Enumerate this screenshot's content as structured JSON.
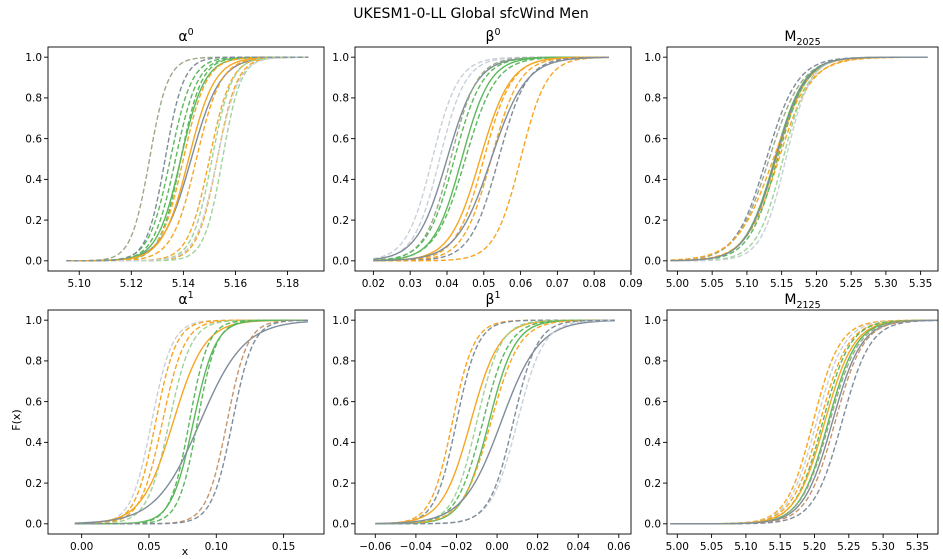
{
  "chart_data": {
    "type": "line",
    "title": "UKESM1-0-LL Global sfcWind Men",
    "xlabel": "x",
    "ylabel": "F(x)",
    "legend": "none",
    "grid": false,
    "palette": {
      "orange": "#f5a623",
      "green": "#5cb85c",
      "gray": "#7f8c9a",
      "light_gray": "#c8d0d8",
      "light_green": "#9ed39a",
      "olive": "#9aaa88"
    },
    "panels": [
      {
        "id": "alpha0",
        "title_base": "α",
        "title_sup": "0",
        "title_sub": "",
        "xlim": [
          5.088,
          5.194
        ],
        "ylim": [
          -0.05,
          1.05
        ],
        "xticks": [
          5.1,
          5.12,
          5.14,
          5.16,
          5.18
        ],
        "xtick_labels": [
          "5.10",
          "5.12",
          "5.14",
          "5.16",
          "5.18"
        ],
        "yticks": [
          0.0,
          0.2,
          0.4,
          0.6,
          0.8,
          1.0
        ],
        "ytick_labels": [
          "0.0",
          "0.2",
          "0.4",
          "0.6",
          "0.8",
          "1.0"
        ],
        "x_start": 5.095,
        "x_end": 5.188,
        "series": [
          {
            "color": "#7f8c9a",
            "dash": false,
            "mu": 5.143,
            "sigma": 0.0095
          },
          {
            "color": "#5cb85c",
            "dash": false,
            "mu": 5.139,
            "sigma": 0.0078
          },
          {
            "color": "#f5a623",
            "dash": false,
            "mu": 5.142,
            "sigma": 0.0085
          },
          {
            "color": "#9aaa88",
            "dash": true,
            "mu": 5.127,
            "sigma": 0.006
          },
          {
            "color": "#5cb85c",
            "dash": true,
            "mu": 5.135,
            "sigma": 0.007
          },
          {
            "color": "#5cb85c",
            "dash": true,
            "mu": 5.137,
            "sigma": 0.0072
          },
          {
            "color": "#5cb85c",
            "dash": true,
            "mu": 5.139,
            "sigma": 0.0068
          },
          {
            "color": "#f5a623",
            "dash": true,
            "mu": 5.14,
            "sigma": 0.0075
          },
          {
            "color": "#f5a623",
            "dash": true,
            "mu": 5.145,
            "sigma": 0.008
          },
          {
            "color": "#f5a623",
            "dash": true,
            "mu": 5.15,
            "sigma": 0.007
          },
          {
            "color": "#f5a623",
            "dash": true,
            "mu": 5.153,
            "sigma": 0.0065
          },
          {
            "color": "#9ed39a",
            "dash": true,
            "mu": 5.151,
            "sigma": 0.0065
          },
          {
            "color": "#9ed39a",
            "dash": true,
            "mu": 5.155,
            "sigma": 0.006
          },
          {
            "color": "#c8d0d8",
            "dash": true,
            "mu": 5.153,
            "sigma": 0.007
          },
          {
            "color": "#7f8c9a",
            "dash": true,
            "mu": 5.133,
            "sigma": 0.006
          }
        ]
      },
      {
        "id": "beta0",
        "title_base": "β",
        "title_sup": "0",
        "title_sub": "",
        "xlim": [
          0.015,
          0.09
        ],
        "ylim": [
          -0.05,
          1.05
        ],
        "xticks": [
          0.02,
          0.03,
          0.04,
          0.05,
          0.06,
          0.07,
          0.08,
          0.09
        ],
        "xtick_labels": [
          "0.02",
          "0.03",
          "0.04",
          "0.05",
          "0.06",
          "0.07",
          "0.08",
          "0.09"
        ],
        "yticks": [
          0.0,
          0.2,
          0.4,
          0.6,
          0.8,
          1.0
        ],
        "ytick_labels": [
          "0.0",
          "0.2",
          "0.4",
          "0.6",
          "0.8",
          "1.0"
        ],
        "x_start": 0.02,
        "x_end": 0.084,
        "series": [
          {
            "color": "#c8d0d8",
            "dash": true,
            "mu": 0.036,
            "sigma": 0.006
          },
          {
            "color": "#c8d0d8",
            "dash": true,
            "mu": 0.038,
            "sigma": 0.006
          },
          {
            "color": "#7f8c9a",
            "dash": false,
            "mu": 0.04,
            "sigma": 0.007
          },
          {
            "color": "#9aaa88",
            "dash": true,
            "mu": 0.041,
            "sigma": 0.006
          },
          {
            "color": "#5cb85c",
            "dash": true,
            "mu": 0.042,
            "sigma": 0.0065
          },
          {
            "color": "#5cb85c",
            "dash": false,
            "mu": 0.044,
            "sigma": 0.0065
          },
          {
            "color": "#5cb85c",
            "dash": true,
            "mu": 0.045,
            "sigma": 0.007
          },
          {
            "color": "#f5a623",
            "dash": false,
            "mu": 0.049,
            "sigma": 0.007
          },
          {
            "color": "#f5a623",
            "dash": true,
            "mu": 0.05,
            "sigma": 0.0065
          },
          {
            "color": "#f5a623",
            "dash": true,
            "mu": 0.052,
            "sigma": 0.0065
          },
          {
            "color": "#7f8c9a",
            "dash": true,
            "mu": 0.054,
            "sigma": 0.0065
          },
          {
            "color": "#f5a623",
            "dash": true,
            "mu": 0.06,
            "sigma": 0.006
          },
          {
            "color": "#7f8c9a",
            "dash": false,
            "mu": 0.052,
            "sigma": 0.008
          }
        ]
      },
      {
        "id": "m2025",
        "title_base": "M",
        "title_sup": "",
        "title_sub": "2025",
        "xlim": [
          4.985,
          5.375
        ],
        "ylim": [
          -0.05,
          1.05
        ],
        "xticks": [
          5.0,
          5.05,
          5.1,
          5.15,
          5.2,
          5.25,
          5.3,
          5.35
        ],
        "xtick_labels": [
          "5.00",
          "5.05",
          "5.10",
          "5.15",
          "5.20",
          "5.25",
          "5.30",
          "5.35"
        ],
        "yticks": [
          0.0,
          0.2,
          0.4,
          0.6,
          0.8,
          1.0
        ],
        "ytick_labels": [
          "0.0",
          "0.2",
          "0.4",
          "0.6",
          "0.8",
          "1.0"
        ],
        "x_start": 4.99,
        "x_end": 5.36,
        "series": [
          {
            "color": "#7f8c9a",
            "dash": true,
            "mu": 5.128,
            "sigma": 0.038
          },
          {
            "color": "#9aaa88",
            "dash": true,
            "mu": 5.132,
            "sigma": 0.04
          },
          {
            "color": "#5cb85c",
            "dash": false,
            "mu": 5.14,
            "sigma": 0.036
          },
          {
            "color": "#f5a623",
            "dash": false,
            "mu": 5.142,
            "sigma": 0.037
          },
          {
            "color": "#f5a623",
            "dash": true,
            "mu": 5.138,
            "sigma": 0.045
          },
          {
            "color": "#f5a623",
            "dash": true,
            "mu": 5.146,
            "sigma": 0.04
          },
          {
            "color": "#5cb85c",
            "dash": true,
            "mu": 5.144,
            "sigma": 0.035
          },
          {
            "color": "#9ed39a",
            "dash": true,
            "mu": 5.152,
            "sigma": 0.032
          },
          {
            "color": "#c8d0d8",
            "dash": true,
            "mu": 5.156,
            "sigma": 0.03
          },
          {
            "color": "#7f8c9a",
            "dash": false,
            "mu": 5.141,
            "sigma": 0.036
          }
        ]
      },
      {
        "id": "alpha1",
        "title_base": "α",
        "title_sup": "1",
        "title_sub": "",
        "xlim": [
          -0.025,
          0.18
        ],
        "ylim": [
          -0.05,
          1.05
        ],
        "xticks": [
          0.0,
          0.05,
          0.1,
          0.15
        ],
        "xtick_labels": [
          "0.00",
          "0.05",
          "0.10",
          "0.15"
        ],
        "yticks": [
          0.0,
          0.2,
          0.4,
          0.6,
          0.8,
          1.0
        ],
        "ytick_labels": [
          "0.0",
          "0.2",
          "0.4",
          "0.6",
          "0.8",
          "1.0"
        ],
        "x_start": -0.005,
        "x_end": 0.168,
        "series": [
          {
            "color": "#c8d0d8",
            "dash": true,
            "mu": 0.052,
            "sigma": 0.013
          },
          {
            "color": "#f5a623",
            "dash": true,
            "mu": 0.055,
            "sigma": 0.013
          },
          {
            "color": "#f5a623",
            "dash": true,
            "mu": 0.06,
            "sigma": 0.014
          },
          {
            "color": "#9ed39a",
            "dash": true,
            "mu": 0.065,
            "sigma": 0.014
          },
          {
            "color": "#f5a623",
            "dash": false,
            "mu": 0.068,
            "sigma": 0.02
          },
          {
            "color": "#5cb85c",
            "dash": true,
            "mu": 0.08,
            "sigma": 0.012
          },
          {
            "color": "#5cb85c",
            "dash": false,
            "mu": 0.083,
            "sigma": 0.014
          },
          {
            "color": "#7f8c9a",
            "dash": false,
            "mu": 0.088,
            "sigma": 0.028
          },
          {
            "color": "#5cb85c",
            "dash": true,
            "mu": 0.086,
            "sigma": 0.012
          },
          {
            "color": "#c8956a",
            "dash": true,
            "mu": 0.108,
            "sigma": 0.013
          },
          {
            "color": "#7f8c9a",
            "dash": true,
            "mu": 0.112,
            "sigma": 0.013
          }
        ]
      },
      {
        "id": "beta1",
        "title_base": "β",
        "title_sup": "1",
        "title_sub": "",
        "xlim": [
          -0.07,
          0.066
        ],
        "ylim": [
          -0.05,
          1.05
        ],
        "xticks": [
          -0.06,
          -0.04,
          -0.02,
          0.0,
          0.02,
          0.04,
          0.06
        ],
        "xtick_labels": [
          "−0.06",
          "−0.04",
          "−0.02",
          "0.00",
          "0.02",
          "0.04",
          "0.06"
        ],
        "yticks": [
          0.0,
          0.2,
          0.4,
          0.6,
          0.8,
          1.0
        ],
        "ytick_labels": [
          "0.0",
          "0.2",
          "0.4",
          "0.6",
          "0.8",
          "1.0"
        ],
        "x_start": -0.06,
        "x_end": 0.058,
        "series": [
          {
            "color": "#f5a623",
            "dash": true,
            "mu": -0.022,
            "sigma": 0.009
          },
          {
            "color": "#7f8c9a",
            "dash": true,
            "mu": -0.02,
            "sigma": 0.009
          },
          {
            "color": "#f5a623",
            "dash": false,
            "mu": -0.013,
            "sigma": 0.012
          },
          {
            "color": "#9ed39a",
            "dash": true,
            "mu": -0.01,
            "sigma": 0.01
          },
          {
            "color": "#5cb85c",
            "dash": true,
            "mu": -0.007,
            "sigma": 0.011
          },
          {
            "color": "#5cb85c",
            "dash": false,
            "mu": -0.004,
            "sigma": 0.011
          },
          {
            "color": "#f5a623",
            "dash": true,
            "mu": -0.003,
            "sigma": 0.012
          },
          {
            "color": "#7f8c9a",
            "dash": false,
            "mu": 0.002,
            "sigma": 0.016
          },
          {
            "color": "#c8d0d8",
            "dash": true,
            "mu": 0.01,
            "sigma": 0.011
          },
          {
            "color": "#7f8c9a",
            "dash": true,
            "mu": 0.008,
            "sigma": 0.01
          }
        ]
      },
      {
        "id": "m2125",
        "title_base": "M",
        "title_sup": "",
        "title_sub": "2125",
        "xlim": [
          4.985,
          5.38
        ],
        "ylim": [
          -0.05,
          1.05
        ],
        "xticks": [
          5.0,
          5.05,
          5.1,
          5.15,
          5.2,
          5.25,
          5.3,
          5.35
        ],
        "xtick_labels": [
          "5.00",
          "5.05",
          "5.10",
          "5.15",
          "5.20",
          "5.25",
          "5.30",
          "5.35"
        ],
        "yticks": [
          0.0,
          0.2,
          0.4,
          0.6,
          0.8,
          1.0
        ],
        "ytick_labels": [
          "0.0",
          "0.2",
          "0.4",
          "0.6",
          "0.8",
          "1.0"
        ],
        "x_start": 4.99,
        "x_end": 5.38,
        "series": [
          {
            "color": "#f5a623",
            "dash": true,
            "mu": 5.198,
            "sigma": 0.033
          },
          {
            "color": "#c8d0d8",
            "dash": true,
            "mu": 5.203,
            "sigma": 0.034
          },
          {
            "color": "#f5a623",
            "dash": true,
            "mu": 5.208,
            "sigma": 0.035
          },
          {
            "color": "#5cb85c",
            "dash": true,
            "mu": 5.212,
            "sigma": 0.034
          },
          {
            "color": "#f5a623",
            "dash": false,
            "mu": 5.215,
            "sigma": 0.036
          },
          {
            "color": "#5cb85c",
            "dash": false,
            "mu": 5.22,
            "sigma": 0.035
          },
          {
            "color": "#9aaa88",
            "dash": true,
            "mu": 5.222,
            "sigma": 0.036
          },
          {
            "color": "#7f8c9a",
            "dash": false,
            "mu": 5.226,
            "sigma": 0.036
          },
          {
            "color": "#c8956a",
            "dash": true,
            "mu": 5.23,
            "sigma": 0.035
          },
          {
            "color": "#7f8c9a",
            "dash": true,
            "mu": 5.24,
            "sigma": 0.035
          }
        ]
      }
    ]
  }
}
